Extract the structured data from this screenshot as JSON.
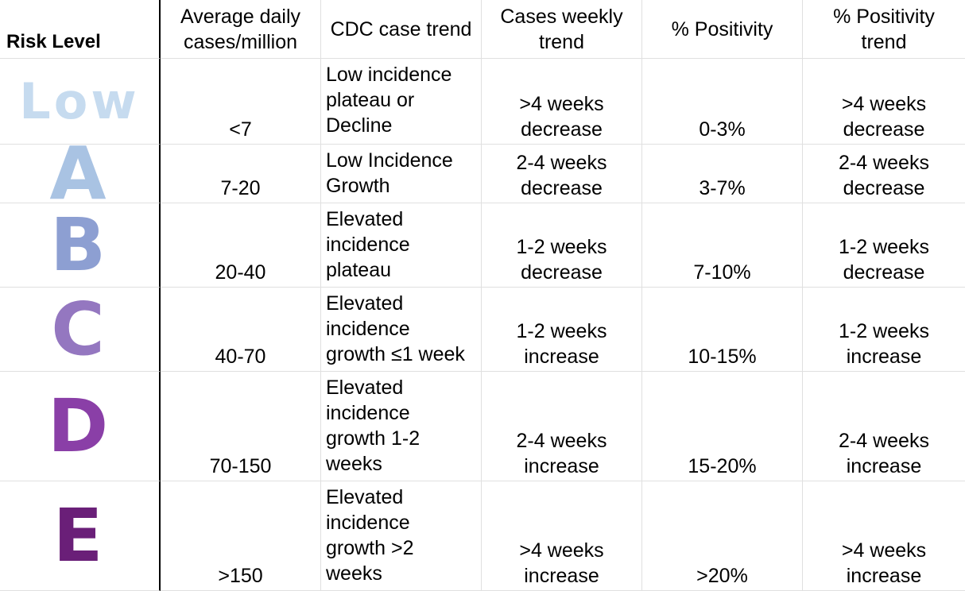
{
  "headers": {
    "risk_level": "Risk Level",
    "avg_daily": "Average daily\ncases/million",
    "cdc_trend": "CDC case trend",
    "cases_weekly": "Cases weekly\ntrend",
    "positivity": "% Positivity",
    "positivity_trend": "% Positivity\ntrend"
  },
  "rows": [
    {
      "risk": "Low",
      "risk_color": "#c6dbef",
      "avg_daily": "<7",
      "cdc_trend": "Low incidence\nplateau or\nDecline",
      "cases_weekly": ">4 weeks\ndecrease",
      "positivity": "0-3%",
      "positivity_trend": ">4 weeks\ndecrease"
    },
    {
      "risk": "A",
      "risk_color": "#a9c3e3",
      "avg_daily": "7-20",
      "cdc_trend": "Low Incidence\nGrowth",
      "cases_weekly": "2-4 weeks\ndecrease",
      "positivity": "3-7%",
      "positivity_trend": "2-4 weeks\ndecrease"
    },
    {
      "risk": "B",
      "risk_color": "#8d9fd2",
      "avg_daily": "20-40",
      "cdc_trend": "Elevated\nincidence\nplateau",
      "cases_weekly": "1-2 weeks\ndecrease",
      "positivity": "7-10%",
      "positivity_trend": "1-2 weeks\ndecrease"
    },
    {
      "risk": "C",
      "risk_color": "#9477c0",
      "avg_daily": "40-70",
      "cdc_trend": "Elevated\nincidence\ngrowth ≤1 week",
      "cases_weekly": "1-2 weeks\nincrease",
      "positivity": "10-15%",
      "positivity_trend": "1-2 weeks\nincrease"
    },
    {
      "risk": "D",
      "risk_color": "#8a3fa7",
      "avg_daily": "70-150",
      "cdc_trend": "Elevated\nincidence\ngrowth 1-2\nweeks",
      "cases_weekly": "2-4 weeks\nincrease",
      "positivity": "15-20%",
      "positivity_trend": "2-4 weeks\nincrease"
    },
    {
      "risk": "E",
      "risk_color": "#6a1f78",
      "avg_daily": ">150",
      "cdc_trend": "Elevated\nincidence\ngrowth >2\nweeks",
      "cases_weekly": ">4 weeks\nincrease",
      "positivity": ">20%",
      "positivity_trend": ">4 weeks\nincrease"
    }
  ]
}
